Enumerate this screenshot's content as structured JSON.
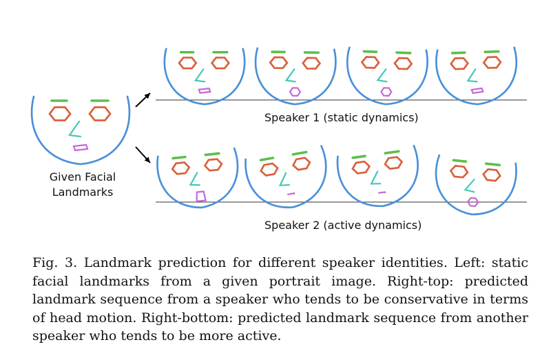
{
  "figure": {
    "given_label_line1": "Given Facial",
    "given_label_line2": "Landmarks",
    "speaker1_label": "Speaker 1 (static dynamics)",
    "speaker2_label": "Speaker 2 (active dynamics)",
    "colors": {
      "face_outline": "#4a90d9",
      "eyes": "#d9603b",
      "eyebrows": "#5cbf4a",
      "nose": "#45c9b8",
      "mouth": "#c46ad6",
      "arrow": "#000000",
      "baseline": "#333333"
    }
  },
  "caption": {
    "text": "Fig. 3.  Landmark prediction for different speaker identities. Left: static facial landmarks from a given portrait image. Right-top: predicted landmark sequence from a speaker who tends to be conservative in terms of head motion. Right-bottom: predicted landmark sequence from another speaker who tends to be more active."
  }
}
